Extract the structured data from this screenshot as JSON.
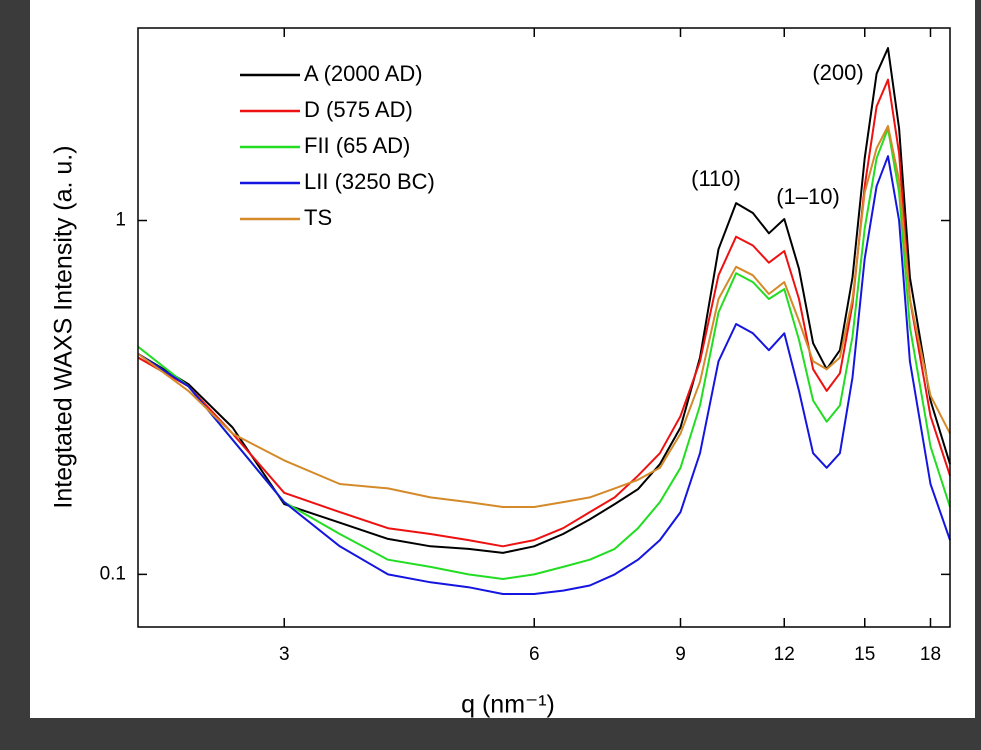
{
  "chart_data": {
    "type": "line",
    "x_label": "q (nm⁻¹)",
    "y_label": "Integtated WAXS Intensity (a. u.)",
    "xscale": "log",
    "yscale": "log",
    "xlim": [
      2,
      19
    ],
    "ylim": [
      0.071,
      3.5
    ],
    "xticks": [
      3,
      6,
      9,
      12,
      15,
      18
    ],
    "yticks": [
      0.1,
      1
    ],
    "legend": "upper left",
    "annotations": [
      "(110)",
      "(1–10)",
      "(200)"
    ],
    "x": [
      2,
      2.3,
      2.6,
      3,
      3.5,
      4,
      4.5,
      5,
      5.5,
      6,
      6.5,
      7,
      7.5,
      8,
      8.5,
      9,
      9.5,
      10,
      10.5,
      11,
      11.5,
      12,
      12.5,
      13,
      13.5,
      14,
      14.5,
      15,
      15.5,
      16,
      16.5,
      17,
      18,
      19
    ],
    "series": [
      {
        "name": "A (2000 AD)",
        "color": "#000000",
        "values": [
          0.42,
          0.345,
          0.26,
          0.158,
          0.14,
          0.126,
          0.12,
          0.118,
          0.115,
          0.12,
          0.13,
          0.143,
          0.158,
          0.174,
          0.205,
          0.26,
          0.41,
          0.83,
          1.12,
          1.05,
          0.92,
          1.01,
          0.73,
          0.45,
          0.38,
          0.43,
          0.69,
          1.5,
          2.6,
          3.07,
          1.82,
          0.69,
          0.31,
          0.205
        ]
      },
      {
        "name": "D (575 AD)",
        "color": "#ee1111",
        "values": [
          0.41,
          0.34,
          0.25,
          0.17,
          0.15,
          0.135,
          0.13,
          0.125,
          0.12,
          0.125,
          0.135,
          0.15,
          0.165,
          0.19,
          0.22,
          0.28,
          0.4,
          0.7,
          0.9,
          0.85,
          0.76,
          0.82,
          0.6,
          0.38,
          0.33,
          0.37,
          0.58,
          1.25,
          2.1,
          2.5,
          1.55,
          0.6,
          0.28,
          0.19
        ]
      },
      {
        "name": "FII (65 AD)",
        "color": "#22dd22",
        "values": [
          0.44,
          0.34,
          0.24,
          0.16,
          0.13,
          0.11,
          0.105,
          0.1,
          0.097,
          0.1,
          0.105,
          0.11,
          0.118,
          0.135,
          0.16,
          0.2,
          0.3,
          0.55,
          0.71,
          0.67,
          0.6,
          0.64,
          0.46,
          0.31,
          0.27,
          0.3,
          0.47,
          0.95,
          1.5,
          1.82,
          1.2,
          0.5,
          0.23,
          0.155
        ]
      },
      {
        "name": "LII (3250 BC)",
        "color": "#1515e0",
        "values": [
          0.42,
          0.34,
          0.24,
          0.16,
          0.12,
          0.1,
          0.095,
          0.092,
          0.088,
          0.088,
          0.09,
          0.093,
          0.1,
          0.11,
          0.125,
          0.15,
          0.22,
          0.4,
          0.51,
          0.48,
          0.43,
          0.48,
          0.33,
          0.22,
          0.2,
          0.22,
          0.36,
          0.78,
          1.25,
          1.52,
          1.0,
          0.4,
          0.18,
          0.125
        ]
      },
      {
        "name": "TS",
        "color": "#d58a2a",
        "values": [
          0.42,
          0.33,
          0.25,
          0.21,
          0.18,
          0.175,
          0.165,
          0.16,
          0.155,
          0.155,
          0.16,
          0.165,
          0.175,
          0.185,
          0.2,
          0.25,
          0.35,
          0.6,
          0.74,
          0.7,
          0.62,
          0.67,
          0.52,
          0.4,
          0.38,
          0.41,
          0.6,
          1.2,
          1.6,
          1.85,
          1.3,
          0.6,
          0.32,
          0.25
        ]
      }
    ]
  }
}
